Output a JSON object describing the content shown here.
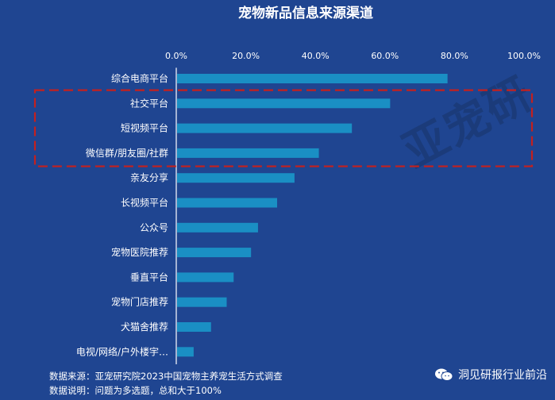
{
  "chart_data": {
    "type": "bar",
    "orientation": "horizontal",
    "title": "宠物新品信息来源渠道",
    "xlim": [
      0,
      100
    ],
    "x_ticks": [
      "0.0%",
      "20.0%",
      "40.0%",
      "60.0%",
      "80.0%",
      "100.0%"
    ],
    "categories": [
      "综合电商平台",
      "社交平台",
      "短视频平台",
      "微信群/朋友圈/社群",
      "亲友分享",
      "长视频平台",
      "公众号",
      "宠物医院推荐",
      "垂直平台",
      "宠物门店推荐",
      "犬猫舍推荐",
      "电视/网络/户外楼宇…"
    ],
    "values": [
      78.0,
      61.5,
      50.5,
      41.0,
      34.0,
      29.0,
      23.5,
      21.5,
      16.5,
      14.5,
      10.0,
      5.0
    ],
    "highlight": [
      1,
      3
    ],
    "grid": false,
    "colors": {
      "bar": "#1a8fc4",
      "background": "#1f4591",
      "highlight_box": "#c4201e"
    }
  },
  "footer": {
    "source": "数据来源：亚宠研究院2023中国宠物主养宠生活方式调查",
    "note": "数据说明：问题为多选题，总和大于100%"
  },
  "watermark": {
    "text": "洞见研报行业前沿",
    "stamp": "亚宠研"
  }
}
